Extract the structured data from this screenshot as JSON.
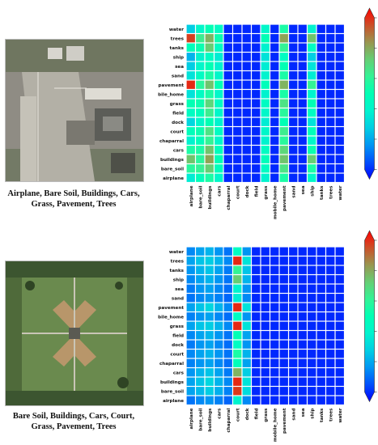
{
  "figures": [
    {
      "caption_line1": "Airplane, Bare Soil, Buildings, Cars,",
      "caption_line2": "Grass, Pavement, Trees"
    },
    {
      "caption_line1": "Bare Soil,  Buildings, Cars, Court,",
      "caption_line2": "Grass, Pavement, Trees"
    }
  ],
  "chart_data": [
    {
      "type": "heatmap",
      "title": "",
      "xlabel": "",
      "ylabel": "",
      "x_categories": [
        "airplane",
        "bare_soil",
        "buildings",
        "cars",
        "chaparral",
        "court",
        "dock",
        "field",
        "grass",
        "mobile_home",
        "pavement",
        "sand",
        "sea",
        "ship",
        "tanks",
        "trees",
        "water"
      ],
      "y_categories": [
        "water",
        "trees",
        "tanks",
        "ship",
        "sea",
        "sand",
        "pavement",
        "bile_home",
        "grass",
        "field",
        "dock",
        "court",
        "chaparral",
        "cars",
        "buildings",
        "bare_soil",
        "airplane"
      ],
      "values": [
        [
          0.3,
          0.42,
          0.5,
          0.45,
          0.05,
          0.05,
          0.05,
          0.05,
          0.42,
          0.05,
          0.55,
          0.05,
          0.05,
          0.4,
          0.05,
          0.05,
          0.05
        ],
        [
          0.92,
          0.62,
          0.75,
          0.52,
          0.05,
          0.05,
          0.05,
          0.05,
          0.5,
          0.05,
          0.78,
          0.05,
          0.05,
          0.72,
          0.05,
          0.05,
          0.05
        ],
        [
          0.48,
          0.52,
          0.7,
          0.45,
          0.05,
          0.05,
          0.05,
          0.05,
          0.4,
          0.05,
          0.6,
          0.05,
          0.05,
          0.45,
          0.05,
          0.05,
          0.05
        ],
        [
          0.25,
          0.4,
          0.45,
          0.38,
          0.05,
          0.05,
          0.05,
          0.05,
          0.35,
          0.05,
          0.45,
          0.05,
          0.05,
          0.3,
          0.05,
          0.05,
          0.05
        ],
        [
          0.3,
          0.42,
          0.5,
          0.4,
          0.05,
          0.05,
          0.05,
          0.05,
          0.38,
          0.05,
          0.5,
          0.05,
          0.05,
          0.35,
          0.05,
          0.05,
          0.05
        ],
        [
          0.35,
          0.45,
          0.55,
          0.42,
          0.05,
          0.05,
          0.05,
          0.05,
          0.4,
          0.05,
          0.55,
          0.05,
          0.05,
          0.38,
          0.05,
          0.05,
          0.05
        ],
        [
          0.95,
          0.58,
          0.72,
          0.5,
          0.05,
          0.05,
          0.05,
          0.05,
          0.48,
          0.05,
          0.75,
          0.05,
          0.05,
          0.6,
          0.05,
          0.05,
          0.05
        ],
        [
          0.35,
          0.45,
          0.55,
          0.42,
          0.05,
          0.05,
          0.05,
          0.05,
          0.4,
          0.05,
          0.55,
          0.05,
          0.05,
          0.4,
          0.05,
          0.05,
          0.05
        ],
        [
          0.5,
          0.52,
          0.68,
          0.45,
          0.05,
          0.05,
          0.05,
          0.05,
          0.45,
          0.05,
          0.65,
          0.05,
          0.05,
          0.5,
          0.05,
          0.05,
          0.05
        ],
        [
          0.45,
          0.48,
          0.62,
          0.42,
          0.05,
          0.05,
          0.05,
          0.05,
          0.42,
          0.05,
          0.58,
          0.05,
          0.05,
          0.45,
          0.05,
          0.05,
          0.05
        ],
        [
          0.32,
          0.42,
          0.5,
          0.4,
          0.05,
          0.05,
          0.05,
          0.05,
          0.38,
          0.05,
          0.5,
          0.05,
          0.05,
          0.35,
          0.05,
          0.05,
          0.05
        ],
        [
          0.48,
          0.52,
          0.65,
          0.45,
          0.05,
          0.05,
          0.05,
          0.05,
          0.42,
          0.05,
          0.62,
          0.05,
          0.05,
          0.48,
          0.05,
          0.05,
          0.05
        ],
        [
          0.4,
          0.48,
          0.6,
          0.42,
          0.05,
          0.05,
          0.05,
          0.05,
          0.4,
          0.05,
          0.58,
          0.05,
          0.05,
          0.42,
          0.05,
          0.05,
          0.05
        ],
        [
          0.55,
          0.55,
          0.72,
          0.48,
          0.05,
          0.05,
          0.05,
          0.05,
          0.45,
          0.05,
          0.68,
          0.05,
          0.05,
          0.52,
          0.05,
          0.05,
          0.05
        ],
        [
          0.72,
          0.58,
          0.78,
          0.5,
          0.05,
          0.05,
          0.05,
          0.05,
          0.48,
          0.05,
          0.72,
          0.05,
          0.05,
          0.7,
          0.05,
          0.05,
          0.05
        ],
        [
          0.58,
          0.6,
          0.7,
          0.48,
          0.05,
          0.05,
          0.05,
          0.05,
          0.45,
          0.05,
          0.65,
          0.05,
          0.05,
          0.55,
          0.05,
          0.05,
          0.05
        ],
        [
          0.38,
          0.48,
          0.55,
          0.42,
          0.05,
          0.05,
          0.05,
          0.05,
          0.4,
          0.05,
          0.55,
          0.05,
          0.05,
          0.42,
          0.05,
          0.05,
          0.05
        ]
      ],
      "colorbar_range": [
        0.0,
        1.0
      ],
      "colorbar_ticks": [
        "0.0",
        "0.2",
        "0.4",
        "0.6",
        "0.8",
        "1.0"
      ],
      "colormap": "rainbow"
    },
    {
      "type": "heatmap",
      "title": "",
      "xlabel": "",
      "ylabel": "",
      "x_categories": [
        "airplane",
        "bare_soil",
        "buildings",
        "cars",
        "chaparral",
        "court",
        "dock",
        "field",
        "grass",
        "mobile_home",
        "pavement",
        "sand",
        "sea",
        "ship",
        "tanks",
        "trees",
        "water"
      ],
      "y_categories": [
        "water",
        "trees",
        "tanks",
        "ship",
        "sea",
        "sand",
        "pavement",
        "bile_home",
        "grass",
        "field",
        "dock",
        "court",
        "chaparral",
        "cars",
        "buildings",
        "bare_soil",
        "airplane"
      ],
      "values": [
        [
          0.18,
          0.22,
          0.25,
          0.2,
          0.15,
          0.45,
          0.2,
          0.05,
          0.05,
          0.05,
          0.05,
          0.05,
          0.05,
          0.05,
          0.05,
          0.05,
          0.05
        ],
        [
          0.22,
          0.28,
          0.3,
          0.25,
          0.18,
          0.95,
          0.35,
          0.05,
          0.05,
          0.05,
          0.05,
          0.05,
          0.05,
          0.05,
          0.05,
          0.05,
          0.05
        ],
        [
          0.2,
          0.25,
          0.28,
          0.22,
          0.16,
          0.6,
          0.28,
          0.05,
          0.05,
          0.05,
          0.05,
          0.05,
          0.05,
          0.05,
          0.05,
          0.05,
          0.05
        ],
        [
          0.18,
          0.22,
          0.25,
          0.2,
          0.15,
          0.7,
          0.25,
          0.05,
          0.05,
          0.05,
          0.05,
          0.05,
          0.05,
          0.05,
          0.05,
          0.05,
          0.05
        ],
        [
          0.16,
          0.2,
          0.22,
          0.18,
          0.14,
          0.4,
          0.2,
          0.05,
          0.05,
          0.05,
          0.05,
          0.05,
          0.05,
          0.05,
          0.05,
          0.05,
          0.05
        ],
        [
          0.15,
          0.18,
          0.2,
          0.17,
          0.13,
          0.38,
          0.18,
          0.05,
          0.05,
          0.05,
          0.05,
          0.05,
          0.05,
          0.05,
          0.05,
          0.05,
          0.05
        ],
        [
          0.22,
          0.28,
          0.32,
          0.25,
          0.18,
          0.95,
          0.35,
          0.05,
          0.05,
          0.05,
          0.05,
          0.05,
          0.05,
          0.05,
          0.05,
          0.05,
          0.05
        ],
        [
          0.17,
          0.2,
          0.22,
          0.18,
          0.14,
          0.45,
          0.2,
          0.05,
          0.05,
          0.05,
          0.05,
          0.05,
          0.05,
          0.05,
          0.05,
          0.05,
          0.05
        ],
        [
          0.22,
          0.28,
          0.3,
          0.25,
          0.18,
          0.95,
          0.35,
          0.05,
          0.05,
          0.05,
          0.05,
          0.05,
          0.05,
          0.05,
          0.05,
          0.05,
          0.05
        ],
        [
          0.18,
          0.22,
          0.25,
          0.2,
          0.15,
          0.5,
          0.22,
          0.05,
          0.05,
          0.05,
          0.05,
          0.05,
          0.05,
          0.05,
          0.05,
          0.05,
          0.05
        ],
        [
          0.16,
          0.2,
          0.22,
          0.18,
          0.14,
          0.45,
          0.2,
          0.05,
          0.05,
          0.05,
          0.05,
          0.05,
          0.05,
          0.05,
          0.05,
          0.05,
          0.05
        ],
        [
          0.18,
          0.22,
          0.25,
          0.2,
          0.15,
          0.55,
          0.25,
          0.05,
          0.05,
          0.05,
          0.05,
          0.05,
          0.05,
          0.05,
          0.05,
          0.05,
          0.05
        ],
        [
          0.17,
          0.2,
          0.22,
          0.18,
          0.14,
          0.48,
          0.22,
          0.05,
          0.05,
          0.05,
          0.05,
          0.05,
          0.05,
          0.05,
          0.05,
          0.05,
          0.05
        ],
        [
          0.2,
          0.25,
          0.28,
          0.22,
          0.16,
          0.75,
          0.3,
          0.05,
          0.05,
          0.05,
          0.05,
          0.05,
          0.05,
          0.05,
          0.05,
          0.05,
          0.05
        ],
        [
          0.22,
          0.28,
          0.32,
          0.25,
          0.18,
          0.95,
          0.35,
          0.05,
          0.05,
          0.05,
          0.05,
          0.05,
          0.05,
          0.05,
          0.05,
          0.05,
          0.05
        ],
        [
          0.22,
          0.26,
          0.3,
          0.24,
          0.17,
          0.93,
          0.33,
          0.05,
          0.05,
          0.05,
          0.05,
          0.05,
          0.05,
          0.05,
          0.05,
          0.05,
          0.05
        ],
        [
          0.15,
          0.18,
          0.2,
          0.17,
          0.13,
          0.4,
          0.18,
          0.05,
          0.05,
          0.05,
          0.05,
          0.05,
          0.05,
          0.05,
          0.05,
          0.05,
          0.05
        ]
      ],
      "colorbar_range": [
        0.0,
        1.0
      ],
      "colorbar_ticks": [
        "0.0",
        "0.2",
        "0.4",
        "0.6",
        "0.8",
        "1.0"
      ],
      "colormap": "rainbow"
    }
  ]
}
